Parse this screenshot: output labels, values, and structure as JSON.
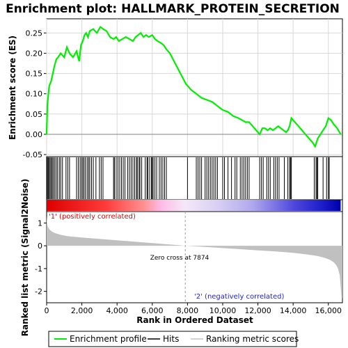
{
  "chart_data": [
    {
      "type": "line",
      "title": "Enrichment plot: HALLMARK_PROTEIN_SECRETION",
      "ylabel": "Enrichment score (ES)",
      "xlim": [
        0,
        16800
      ],
      "ylim": [
        -0.055,
        0.285
      ],
      "yticks": [
        -0.05,
        0.0,
        0.05,
        0.1,
        0.15,
        0.2,
        0.25
      ],
      "ytick_labels": [
        "-0.05",
        "0.00",
        "0.05",
        "0.10",
        "0.15",
        "0.20",
        "0.25"
      ],
      "grid": true,
      "line_color": "#00ee00",
      "series": [
        {
          "name": "Enrichment profile",
          "x": [
            0,
            40,
            100,
            150,
            250,
            350,
            450,
            550,
            650,
            800,
            1000,
            1150,
            1300,
            1500,
            1700,
            1850,
            1950,
            2050,
            2150,
            2250,
            2350,
            2450,
            2650,
            2850,
            3050,
            3200,
            3400,
            3600,
            3800,
            3950,
            4100,
            4300,
            4500,
            4700,
            4900,
            5050,
            5200,
            5350,
            5500,
            5650,
            5800,
            6000,
            6150,
            6300,
            6500,
            6650,
            6800,
            7000,
            7300,
            7600,
            7900,
            8200,
            8500,
            8800,
            9100,
            9400,
            9700,
            10000,
            10300,
            10600,
            10900,
            11100,
            11300,
            11500,
            11700,
            11900,
            12100,
            12250,
            12400,
            12550,
            12700,
            12850,
            13000,
            13150,
            13300,
            13450,
            13600,
            13700,
            13800,
            13900,
            14100,
            14300,
            14500,
            14700,
            14900,
            15100,
            15250,
            15400,
            15550,
            15700,
            15850,
            16000,
            16150,
            16300,
            16500,
            16700
          ],
          "y": [
            0.0,
            0.07,
            0.1,
            0.12,
            0.13,
            0.15,
            0.17,
            0.185,
            0.19,
            0.2,
            0.19,
            0.215,
            0.2,
            0.19,
            0.205,
            0.18,
            0.22,
            0.23,
            0.245,
            0.25,
            0.24,
            0.255,
            0.26,
            0.25,
            0.265,
            0.26,
            0.255,
            0.24,
            0.235,
            0.24,
            0.23,
            0.235,
            0.24,
            0.235,
            0.23,
            0.24,
            0.245,
            0.25,
            0.24,
            0.245,
            0.24,
            0.245,
            0.235,
            0.23,
            0.225,
            0.22,
            0.21,
            0.2,
            0.175,
            0.15,
            0.125,
            0.11,
            0.1,
            0.09,
            0.085,
            0.08,
            0.07,
            0.06,
            0.055,
            0.045,
            0.04,
            0.035,
            0.03,
            0.03,
            0.02,
            0.01,
            0.0,
            0.015,
            0.015,
            0.01,
            0.015,
            0.01,
            0.015,
            0.02,
            0.015,
            0.01,
            0.005,
            0.01,
            0.02,
            0.04,
            0.03,
            0.02,
            0.01,
            0.0,
            -0.01,
            -0.02,
            -0.03,
            -0.01,
            0.0,
            0.01,
            0.02,
            0.04,
            0.035,
            0.025,
            0.015,
            0.0
          ]
        }
      ]
    },
    {
      "type": "scatter",
      "subtitle": "Hits",
      "xlim": [
        0,
        16800
      ],
      "hits": [
        40,
        90,
        140,
        200,
        260,
        320,
        380,
        460,
        540,
        620,
        720,
        800,
        900,
        1100,
        1200,
        1300,
        1700,
        1800,
        1900,
        1980,
        2050,
        2120,
        2200,
        2300,
        2380,
        2450,
        2550,
        2650,
        2800,
        3000,
        3100,
        3200,
        3800,
        3850,
        3950,
        4050,
        4150,
        4250,
        4350,
        4450,
        4600,
        4700,
        4800,
        4900,
        5000,
        5100,
        5150,
        5250,
        5300,
        5400,
        5600,
        5700,
        5750,
        5850,
        5950,
        6000,
        6050,
        6150,
        6250,
        6400,
        6500,
        6600,
        6700,
        6800,
        8000,
        8500,
        8600,
        8700,
        8800,
        9000,
        9100,
        9200,
        9300,
        9400,
        9500,
        9600,
        9700,
        10000,
        10100,
        10300,
        10500,
        10700,
        10800,
        11000,
        11100,
        11200,
        11300,
        11400,
        11500,
        12100,
        12200,
        12300,
        12500,
        12600,
        12700,
        12900,
        13000,
        13100,
        13200,
        13500,
        13700,
        13800,
        13850,
        13900,
        15200,
        15300,
        15350,
        15400,
        15700,
        15900,
        16000,
        16050
      ]
    },
    {
      "type": "area",
      "ylabel": "Ranked list metric (Signal2Noise)",
      "xlabel": "Rank in Ordered Dataset",
      "xlim": [
        0,
        16800
      ],
      "ylim": [
        -2.5,
        1.5
      ],
      "xticks": [
        0,
        2000,
        4000,
        6000,
        8000,
        10000,
        12000,
        14000,
        16000
      ],
      "xtick_labels": [
        "0",
        "2,000",
        "4,000",
        "6,000",
        "8,000",
        "10,000",
        "12,000",
        "14,000",
        "16,000"
      ],
      "yticks": [
        -2,
        -1,
        0,
        1
      ],
      "ytick_labels": [
        "-2",
        "-1",
        "0",
        "1"
      ],
      "zero_cross": 7874,
      "zero_cross_label": "Zero cross at 7874",
      "pos_label": "'1' (positively correlated)",
      "neg_label": "'2' (negatively correlated)",
      "x": [
        0,
        30,
        80,
        150,
        300,
        500,
        800,
        1200,
        2000,
        3000,
        4000,
        5000,
        6000,
        7000,
        7874,
        9000,
        10000,
        11000,
        12000,
        13000,
        14000,
        14800,
        15400,
        15800,
        16100,
        16300,
        16450,
        16550,
        16650,
        16700,
        16750,
        16800
      ],
      "values": [
        1.3,
        0.95,
        0.82,
        0.72,
        0.62,
        0.55,
        0.48,
        0.42,
        0.36,
        0.3,
        0.24,
        0.18,
        0.12,
        0.06,
        0.0,
        -0.05,
        -0.1,
        -0.15,
        -0.2,
        -0.25,
        -0.31,
        -0.38,
        -0.45,
        -0.53,
        -0.62,
        -0.72,
        -0.85,
        -1.0,
        -1.3,
        -1.8,
        -2.3,
        -2.3
      ]
    }
  ],
  "legend": {
    "items": [
      {
        "label": "Enrichment profile",
        "color": "#00ee00"
      },
      {
        "label": "Hits",
        "color": "#000000"
      },
      {
        "label": "Ranking metric scores",
        "color": "#c0c0c0"
      }
    ]
  },
  "colors": {
    "es_line": "#00ee00",
    "metric_fill": "#c0c0c0",
    "gradient_pos": "#ff0000",
    "gradient_mid": "#ffffff",
    "gradient_neg": "#0000ff",
    "grid": "#d8d8d8"
  }
}
